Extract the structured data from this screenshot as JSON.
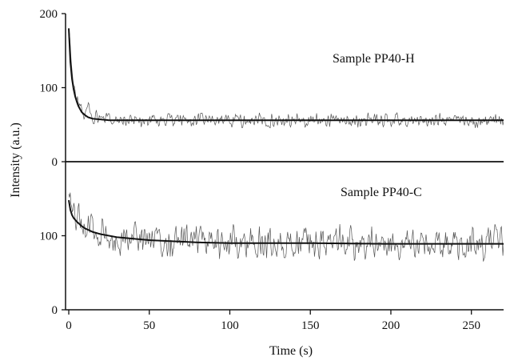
{
  "chart_data": {
    "type": "line",
    "xlabel": "Time (s)",
    "ylabel": "Intensity (a.u.)",
    "xlim": [
      -2,
      270
    ],
    "x_ticks": [
      0,
      50,
      100,
      150,
      200,
      250
    ],
    "grid": false,
    "legend": "none",
    "panels": [
      {
        "label": "Sample PP40-H",
        "ylim": [
          0,
          200
        ],
        "y_ticks": [
          0,
          100,
          200
        ],
        "series": [
          {
            "role": "fit",
            "x": [
              0,
              1,
              2,
              3,
              4,
              5,
              6,
              8,
              10,
              12,
              15,
              20,
              25,
              30,
              40,
              50,
              60,
              80,
              100,
              150,
              200,
              250,
              270
            ],
            "y": [
              180,
              135,
              112,
              98,
              88,
              81,
              75,
              67,
              63,
              60,
              58,
              57,
              56,
              56,
              56,
              56,
              56,
              56,
              56,
              56,
              56,
              56,
              56
            ]
          },
          {
            "role": "measured",
            "noise_amplitude": 9,
            "x": [
              0,
              2,
              5,
              8,
              10,
              12,
              15,
              20,
              30,
              50,
              100,
              150,
              200,
              250,
              270
            ],
            "y": [
              180,
              120,
              85,
              70,
              62,
              75,
              60,
              57,
              57,
              56,
              56,
              56,
              56,
              56,
              56
            ]
          }
        ]
      },
      {
        "label": "Sample PP40-C",
        "ylim": [
          0,
          200
        ],
        "y_ticks": [
          0,
          100
        ],
        "series": [
          {
            "role": "fit",
            "x": [
              0,
              1,
              2,
              3,
              5,
              8,
              10,
              15,
              20,
              30,
              40,
              50,
              60,
              80,
              100,
              150,
              200,
              250,
              270
            ],
            "y": [
              148,
              135,
              128,
              124,
              119,
              113,
              110,
              105,
              102,
              98,
              96,
              94,
              93,
              91,
              90,
              90,
              89,
              89,
              89
            ]
          },
          {
            "role": "measured",
            "noise_amplitude": 22,
            "x": [
              0,
              2,
              5,
              10,
              20,
              30,
              50,
              100,
              150,
              200,
              250,
              270
            ],
            "y": [
              160,
              135,
              122,
              112,
              102,
              98,
              94,
              90,
              90,
              89,
              89,
              89
            ]
          }
        ]
      }
    ]
  }
}
